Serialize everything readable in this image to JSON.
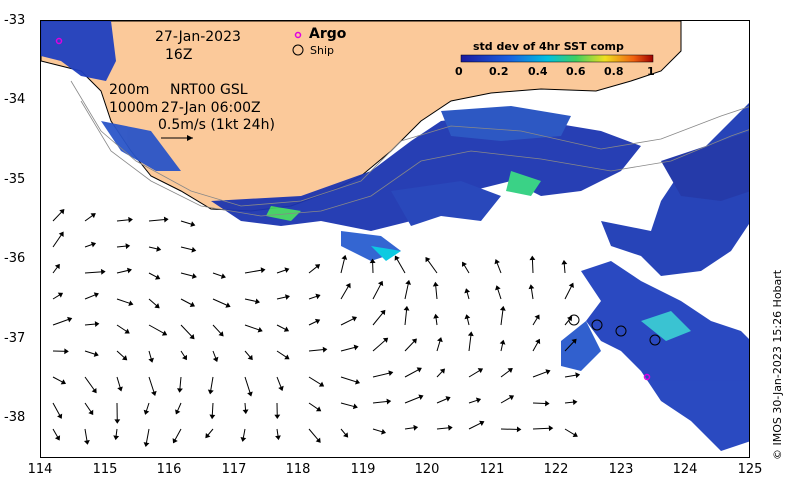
{
  "map": {
    "date": "27-Jan-2023",
    "hour": "16Z",
    "contour_200": "200m",
    "contour_1000": "1000m",
    "product": "NRT00 GSL",
    "product_time": "27-Jan 06:00Z",
    "scale_label": "0.5m/s (1kt 24h)",
    "legend_argo": "Argo",
    "legend_ship": "Ship",
    "colorbar_title": "std dev of 4hr SST comp",
    "colorbar_ticks": [
      "0",
      "0.2",
      "0.4",
      "0.6",
      "0.8",
      "1"
    ],
    "credit": "© IMOS 30-Jan-2023 15:26 Hobart",
    "lon_ticks": [
      "114",
      "115",
      "116",
      "117",
      "118",
      "119",
      "120",
      "121",
      "122",
      "123",
      "124",
      "125"
    ],
    "lat_ticks": [
      "-33",
      "-34",
      "-35",
      "-36",
      "-37",
      "-38"
    ],
    "lon_range": [
      114,
      125
    ],
    "lat_range": [
      -38.5,
      -33
    ],
    "colors": {
      "land": "#fbc99a",
      "argo": "#e000e0",
      "cb_low": "#1a1aa0",
      "cb_mid": "#00c0e0",
      "cb_high": "#a00000"
    }
  }
}
